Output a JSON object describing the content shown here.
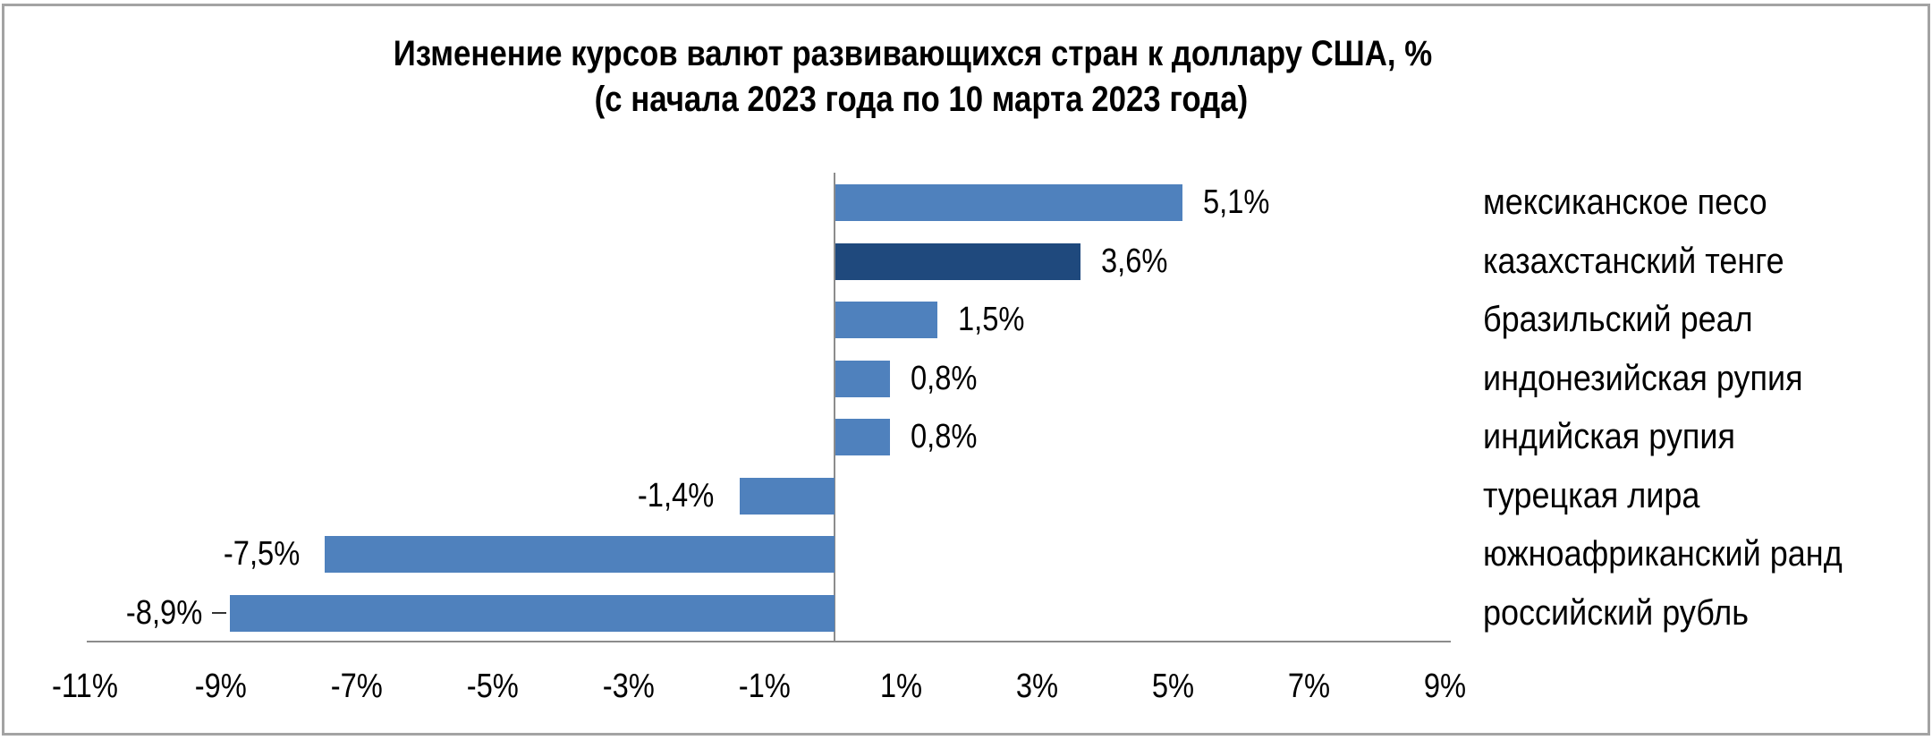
{
  "title": {
    "line1": "Изменение курсов валют развивающихся стран к доллару США, %",
    "line2": "(с начала 2023 года по 10 марта 2023 года)"
  },
  "colors": {
    "bar_default": "#4f81bd",
    "bar_highlight": "#1f497d",
    "axis": "#8c8c8c",
    "frame": "#a3a3a3"
  },
  "chart_data": {
    "type": "bar",
    "orientation": "horizontal",
    "title": "Изменение курсов валют развивающихся стран к доллару США, % (с начала 2023 года по 10 марта 2023 года)",
    "xlabel": "",
    "ylabel": "",
    "categories": [
      "мексиканское песо",
      "казахстанский тенге",
      "бразильский реал",
      "индонезийская рупия",
      "индийская рупия",
      "турецкая лира",
      "южноафриканский ранд",
      "российский рубль"
    ],
    "values": [
      5.1,
      3.6,
      1.5,
      0.8,
      0.8,
      -1.4,
      -7.5,
      -8.9
    ],
    "data_labels": [
      "5,1%",
      "3,6%",
      "1,5%",
      "0,8%",
      "0,8%",
      "-1,4%",
      "-7,5%",
      "-8,9%"
    ],
    "highlight_index": 1,
    "xlim": [
      -11,
      9
    ],
    "x_ticks": [
      -11,
      -9,
      -7,
      -5,
      -3,
      -1,
      1,
      3,
      5,
      7,
      9
    ],
    "x_tick_labels": [
      "-11%",
      "-9%",
      "-7%",
      "-5%",
      "-3%",
      "-1%",
      "1%",
      "3%",
      "5%",
      "7%",
      "9%"
    ],
    "grid": false,
    "legend": null,
    "category_label_position": "right"
  }
}
